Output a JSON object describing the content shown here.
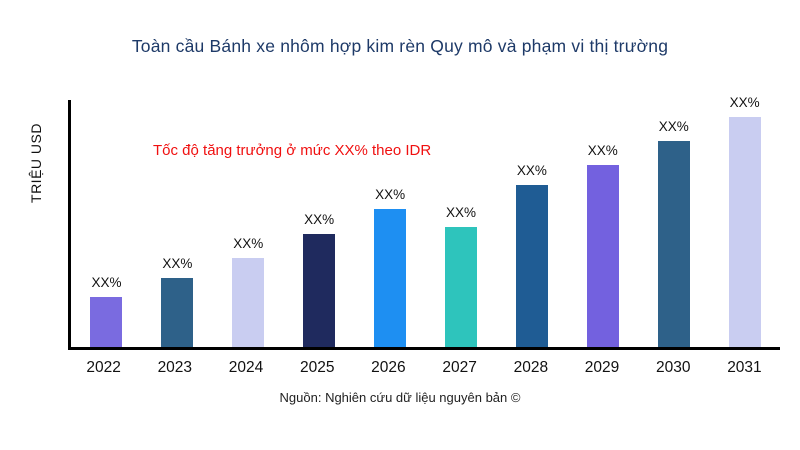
{
  "title": "Toàn cầu Bánh xe nhôm hợp kim rèn Quy mô và phạm vi thị trường",
  "ylabel": "TRIỆU USD",
  "annotation": "Tốc độ tăng trưởng ở mức XX% theo IDR",
  "source": "Nguồn: Nghiên cứu dữ liệu nguyên bản ©",
  "colors": {
    "title": "#1e3a68",
    "annotation": "#f01010",
    "axis": "#000000",
    "background": "#ffffff"
  },
  "chart_data": {
    "type": "bar",
    "title": "Toàn cầu Bánh xe nhôm hợp kim rèn Quy mô và phạm vi thị trường",
    "xlabel": "",
    "ylabel": "TRIỆU USD",
    "categories": [
      "2022",
      "2023",
      "2024",
      "2025",
      "2026",
      "2027",
      "2028",
      "2029",
      "2030",
      "2031"
    ],
    "values": [
      50,
      69,
      89,
      113,
      138,
      120,
      162,
      182,
      206,
      230
    ],
    "bar_labels": [
      "XX%",
      "XX%",
      "XX%",
      "XX%",
      "XX%",
      "XX%",
      "XX%",
      "XX%",
      "XX%",
      "XX%"
    ],
    "bar_colors": [
      "#7a6be0",
      "#2e6189",
      "#c9cdf1",
      "#1f2a5e",
      "#1e8ff2",
      "#2ec4bc",
      "#1f5c94",
      "#7361df",
      "#2e6189",
      "#c9cdf1"
    ],
    "ylim": [
      0,
      250
    ],
    "grid": false,
    "legend": "none",
    "annotation": "Tốc độ tăng trưởng ở mức XX% theo IDR"
  }
}
